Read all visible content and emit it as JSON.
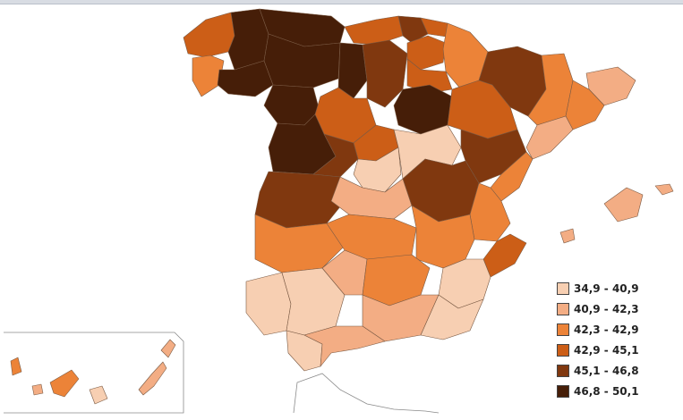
{
  "colors": {
    "c1": "#f7cfb2",
    "c2": "#f3ad84",
    "c3": "#ec8338",
    "c4": "#cc5e17",
    "c5": "#80380f",
    "c6": "#461e08"
  },
  "legend": [
    {
      "label": "34,9 - 40,9",
      "color": "#f7cfb2"
    },
    {
      "label": "40,9 - 42,3",
      "color": "#f3ad84"
    },
    {
      "label": "42,3 - 42,9",
      "color": "#ec8338"
    },
    {
      "label": "42,9 - 45,1",
      "color": "#cc5e17"
    },
    {
      "label": "45,1 - 46,8",
      "color": "#80380f"
    },
    {
      "label": "46,8 - 50,1",
      "color": "#461e08"
    }
  ]
}
